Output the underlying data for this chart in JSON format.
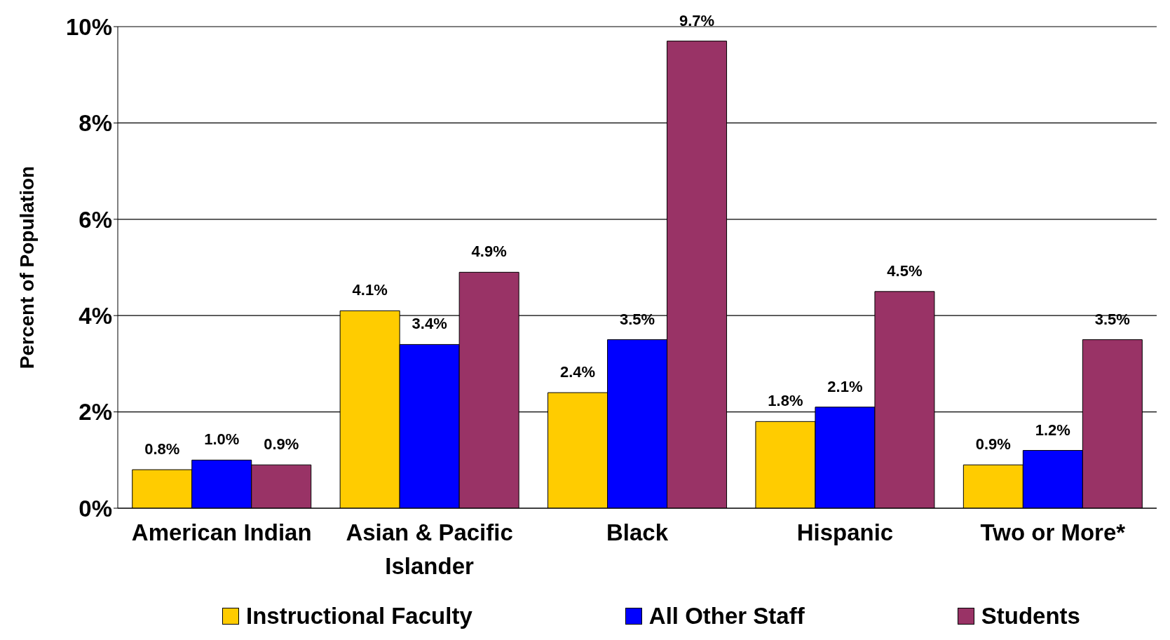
{
  "chart_data": {
    "type": "bar",
    "ylabel": "Percent of Population",
    "categories": [
      "American Indian",
      "Asian & Pacific Islander",
      "Black",
      "Hispanic",
      "Two or More*"
    ],
    "series": [
      {
        "name": "Instructional Faculty",
        "color": "#ffcc00",
        "values": [
          0.8,
          4.1,
          2.4,
          1.8,
          0.9
        ],
        "value_labels": [
          "0.8%",
          "4.1%",
          "2.4%",
          "1.8%",
          "0.9%"
        ]
      },
      {
        "name": "All Other Staff",
        "color": "#0000ff",
        "values": [
          1.0,
          3.4,
          3.5,
          2.1,
          1.2
        ],
        "value_labels": [
          "1.0%",
          "3.4%",
          "3.5%",
          "2.1%",
          "1.2%"
        ]
      },
      {
        "name": "Students",
        "color": "#993366",
        "values": [
          0.9,
          4.9,
          9.7,
          4.5,
          3.5
        ],
        "value_labels": [
          "0.9%",
          "4.9%",
          "9.7%",
          "4.5%",
          "3.5%"
        ]
      }
    ],
    "ylim": [
      0,
      10
    ],
    "yticks": [
      {
        "value": 0,
        "label": "0%"
      },
      {
        "value": 2,
        "label": "2%"
      },
      {
        "value": 4,
        "label": "4%"
      },
      {
        "value": 6,
        "label": "6%"
      },
      {
        "value": 8,
        "label": "8%"
      },
      {
        "value": 10,
        "label": "10%"
      }
    ],
    "grid": "y",
    "legend": "bottom"
  }
}
